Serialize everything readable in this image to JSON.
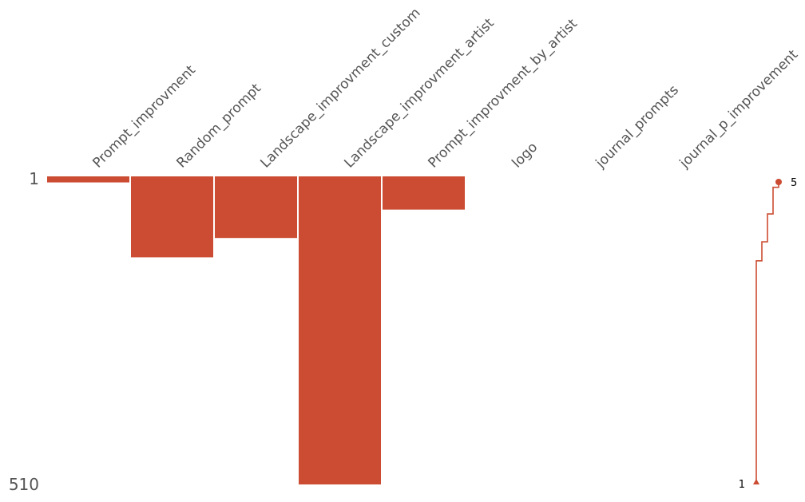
{
  "chart_data": {
    "type": "nullity-matrix",
    "colors": {
      "bar": "#CB4C32",
      "background": "#ffffff",
      "label": "#555555"
    },
    "row_range": [
      1,
      510
    ],
    "row_labels": {
      "top": "1",
      "bottom": "510"
    },
    "columns": [
      {
        "name": "Prompt_improvment",
        "filled_rows": [
          1,
          10
        ]
      },
      {
        "name": "Random_prompt",
        "filled_rows": [
          1,
          134
        ]
      },
      {
        "name": "Landscape_improvment_custom",
        "filled_rows": [
          1,
          102
        ]
      },
      {
        "name": "Landscape_improvment_artist",
        "filled_rows": [
          1,
          510
        ]
      },
      {
        "name": "Prompt_improvment_by_artist",
        "filled_rows": [
          1,
          55
        ]
      },
      {
        "name": "logo",
        "filled_rows": null
      },
      {
        "name": "journal_prompts",
        "filled_rows": null
      },
      {
        "name": "journal_p_improvement",
        "filled_rows": null
      }
    ],
    "sparkline": {
      "min_label": "1",
      "max_label": "5",
      "steps": [
        {
          "row": 1,
          "completeness": 5
        },
        {
          "row": 10,
          "completeness": 4
        },
        {
          "row": 55,
          "completeness": 3
        },
        {
          "row": 102,
          "completeness": 2
        },
        {
          "row": 134,
          "completeness": 1
        },
        {
          "row": 510,
          "completeness": 1
        }
      ],
      "value_range": [
        1,
        5
      ]
    }
  }
}
